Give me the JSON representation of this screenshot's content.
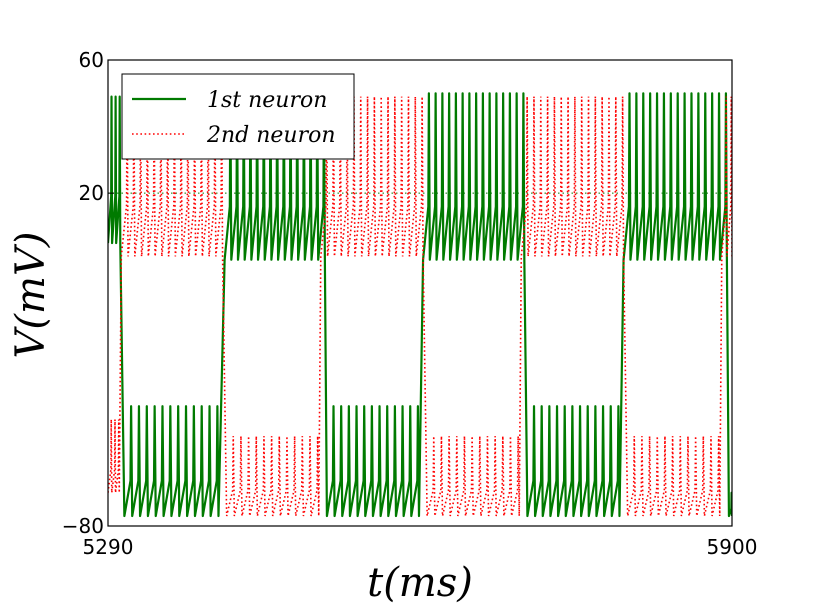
{
  "chart_data": {
    "type": "line",
    "xlabel": "t(ms)",
    "ylabel": "V(mV)",
    "xlim": [
      5290,
      5900
    ],
    "ylim": [
      -80,
      60
    ],
    "xticks": [
      5290,
      5900
    ],
    "yticks": [
      -80,
      20,
      60
    ],
    "xtick_labels": [
      "5290",
      "5900"
    ],
    "ytick_labels": [
      "−80",
      "20",
      "60"
    ],
    "grid": false,
    "reference_line": {
      "y": 20,
      "style": "dotted"
    },
    "legend": {
      "placement": "top-left"
    },
    "colors": {
      "first": "#007a00",
      "second": "#ff0000"
    },
    "series": [
      {
        "name": "1st neuron",
        "style": "solid",
        "bursts": [
          {
            "start": 5290,
            "end": 5302,
            "spikes": 3,
            "peak": 49,
            "trough": 5
          },
          {
            "start": 5404,
            "end": 5502,
            "spikes": 15,
            "peak": 50,
            "trough": 0
          },
          {
            "start": 5598,
            "end": 5697,
            "spikes": 15,
            "peak": 50,
            "trough": 0
          },
          {
            "start": 5794,
            "end": 5895,
            "spikes": 15,
            "peak": 50,
            "trough": 0
          }
        ],
        "silent": [
          {
            "start": 5306,
            "end": 5398,
            "spikes": 12,
            "peak": -44,
            "trough": -77
          },
          {
            "start": 5504,
            "end": 5594,
            "spikes": 12,
            "peak": -44,
            "trough": -77
          },
          {
            "start": 5700,
            "end": 5790,
            "spikes": 12,
            "peak": -44,
            "trough": -77
          },
          {
            "start": 5897,
            "end": 5900,
            "spikes": 1,
            "peak": -70,
            "trough": -77
          }
        ]
      },
      {
        "name": "2nd neuron",
        "style": "dotted",
        "bursts": [
          {
            "start": 5303,
            "end": 5402,
            "spikes": 15,
            "peak": 49,
            "trough": 1
          },
          {
            "start": 5498,
            "end": 5598,
            "spikes": 15,
            "peak": 49,
            "trough": 1
          },
          {
            "start": 5694,
            "end": 5794,
            "spikes": 15,
            "peak": 49,
            "trough": 1
          },
          {
            "start": 5890,
            "end": 5900,
            "spikes": 2,
            "peak": 49,
            "trough": 1
          }
        ],
        "silent": [
          {
            "start": 5290,
            "end": 5301,
            "spikes": 3,
            "peak": -48,
            "trough": -70
          },
          {
            "start": 5406,
            "end": 5496,
            "spikes": 12,
            "peak": -53,
            "trough": -77
          },
          {
            "start": 5602,
            "end": 5692,
            "spikes": 12,
            "peak": -53,
            "trough": -77
          },
          {
            "start": 5798,
            "end": 5888,
            "spikes": 12,
            "peak": -53,
            "trough": -77
          }
        ]
      }
    ]
  }
}
